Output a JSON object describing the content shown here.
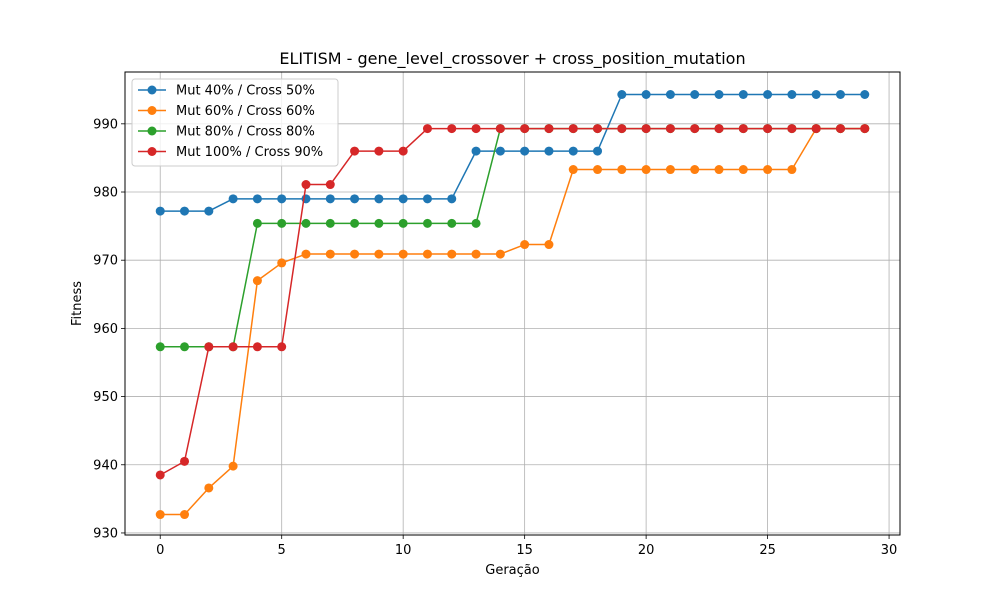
{
  "chart_data": {
    "type": "line",
    "title": "ELITISM - gene_level_crossover + cross_position_mutation",
    "xlabel": "Geração",
    "ylabel": "Fitness",
    "xlim": [
      -1.45,
      30.45
    ],
    "ylim": [
      929.7,
      997.6
    ],
    "xticks": [
      0,
      5,
      10,
      15,
      20,
      25,
      30
    ],
    "yticks": [
      930,
      940,
      950,
      960,
      970,
      980,
      990
    ],
    "grid": true,
    "legend_position": "upper-left",
    "x": [
      0,
      1,
      2,
      3,
      4,
      5,
      6,
      7,
      8,
      9,
      10,
      11,
      12,
      13,
      14,
      15,
      16,
      17,
      18,
      19,
      20,
      21,
      22,
      23,
      24,
      25,
      26,
      27,
      28,
      29
    ],
    "series": [
      {
        "name": "Mut 40% / Cross 50%",
        "color": "#1f77b4",
        "values": [
          977.2,
          977.2,
          977.2,
          979.0,
          979.0,
          979.0,
          979.0,
          979.0,
          979.0,
          979.0,
          979.0,
          979.0,
          979.0,
          986.0,
          986.0,
          986.0,
          986.0,
          986.0,
          986.0,
          994.3,
          994.3,
          994.3,
          994.3,
          994.3,
          994.3,
          994.3,
          994.3,
          994.3,
          994.3,
          994.3
        ]
      },
      {
        "name": "Mut 60% / Cross 60%",
        "color": "#ff7f0e",
        "values": [
          932.7,
          932.7,
          936.6,
          939.8,
          967.0,
          969.6,
          970.9,
          970.9,
          970.9,
          970.9,
          970.9,
          970.9,
          970.9,
          970.9,
          970.9,
          972.3,
          972.3,
          983.3,
          983.3,
          983.3,
          983.3,
          983.3,
          983.3,
          983.3,
          983.3,
          983.3,
          983.3,
          989.3,
          989.3,
          989.3
        ]
      },
      {
        "name": "Mut 80% / Cross 80%",
        "color": "#2ca02c",
        "values": [
          957.3,
          957.3,
          957.3,
          957.3,
          975.4,
          975.4,
          975.4,
          975.4,
          975.4,
          975.4,
          975.4,
          975.4,
          975.4,
          975.4,
          989.3,
          989.3,
          989.3,
          989.3,
          989.3,
          989.3,
          989.3,
          989.3,
          989.3,
          989.3,
          989.3,
          989.3,
          989.3,
          989.3,
          989.3,
          989.3
        ]
      },
      {
        "name": "Mut 100% / Cross 90%",
        "color": "#d62728",
        "values": [
          938.5,
          940.5,
          957.3,
          957.3,
          957.3,
          957.3,
          981.1,
          981.1,
          986.0,
          986.0,
          986.0,
          989.3,
          989.3,
          989.3,
          989.3,
          989.3,
          989.3,
          989.3,
          989.3,
          989.3,
          989.3,
          989.3,
          989.3,
          989.3,
          989.3,
          989.3,
          989.3,
          989.3,
          989.3,
          989.3
        ]
      }
    ]
  }
}
